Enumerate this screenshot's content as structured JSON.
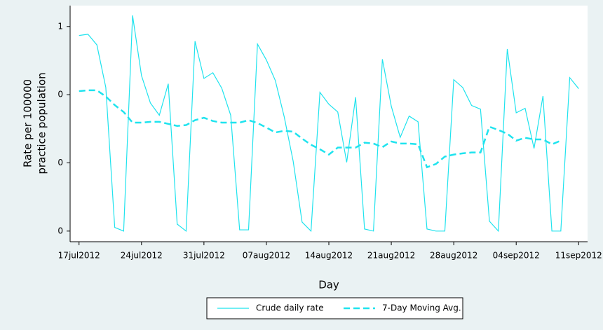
{
  "chart_data": {
    "type": "line",
    "ylabel": [
      "Rate per 100000",
      "practice population"
    ],
    "xlabel": "Day",
    "x": [
      "2012-07-17",
      "2012-07-18",
      "2012-07-19",
      "2012-07-20",
      "2012-07-21",
      "2012-07-22",
      "2012-07-23",
      "2012-07-24",
      "2012-07-25",
      "2012-07-26",
      "2012-07-27",
      "2012-07-28",
      "2012-07-29",
      "2012-07-30",
      "2012-07-31",
      "2012-08-01",
      "2012-08-02",
      "2012-08-03",
      "2012-08-04",
      "2012-08-05",
      "2012-08-06",
      "2012-08-07",
      "2012-08-08",
      "2012-08-09",
      "2012-08-10",
      "2012-08-11",
      "2012-08-12",
      "2012-08-13",
      "2012-08-14",
      "2012-08-15",
      "2012-08-16",
      "2012-08-17",
      "2012-08-18",
      "2012-08-19",
      "2012-08-20",
      "2012-08-21",
      "2012-08-22",
      "2012-08-23",
      "2012-08-24",
      "2012-08-25",
      "2012-08-26",
      "2012-08-27",
      "2012-08-28",
      "2012-08-29",
      "2012-08-30",
      "2012-08-31",
      "2012-09-01",
      "2012-09-02",
      "2012-09-03",
      "2012-09-04",
      "2012-09-05",
      "2012-09-06",
      "2012-09-07",
      "2012-09-08",
      "2012-09-09",
      "2012-09-10",
      "2012-09-11"
    ],
    "series": [
      {
        "name": "Crude daily rate",
        "color": "#1fe3ee",
        "dash": false,
        "values": [
          0.478,
          0.481,
          0.455,
          0.351,
          0.009,
          0,
          0.527,
          0.38,
          0.313,
          0.283,
          0.36,
          0.017,
          0,
          0.464,
          0.373,
          0.387,
          0.349,
          0.283,
          0.003,
          0.003,
          0.457,
          0.418,
          0.368,
          0.279,
          0.171,
          0.022,
          0,
          0.339,
          0.31,
          0.291,
          0.168,
          0.327,
          0.005,
          0,
          0.42,
          0.305,
          0.229,
          0.281,
          0.267,
          0.005,
          0,
          0,
          0.37,
          0.351,
          0.307,
          0.298,
          0.024,
          0,
          0.445,
          0.289,
          0.3,
          0.202,
          0.33,
          0,
          0,
          0.375,
          0.348
        ]
      },
      {
        "name": "7-Day Moving Avg.",
        "color": "#1fe3ee",
        "dash": true,
        "values": [
          0.342,
          0.344,
          0.344,
          0.329,
          0.308,
          0.291,
          0.265,
          0.265,
          0.267,
          0.267,
          0.262,
          0.257,
          0.259,
          0.271,
          0.277,
          0.269,
          0.265,
          0.265,
          0.265,
          0.271,
          0.264,
          0.253,
          0.241,
          0.245,
          0.243,
          0.226,
          0.211,
          0.2,
          0.187,
          0.204,
          0.204,
          0.204,
          0.216,
          0.214,
          0.205,
          0.219,
          0.214,
          0.214,
          0.212,
          0.156,
          0.164,
          0.182,
          0.187,
          0.19,
          0.192,
          0.192,
          0.255,
          0.247,
          0.238,
          0.221,
          0.228,
          0.224,
          0.224,
          0.212,
          0.221,
          null,
          null
        ]
      }
    ],
    "xlim": [
      "2012-07-16",
      "2012-09-12"
    ],
    "xticks": [
      {
        "value": "2012-07-17",
        "label": "17jul2012"
      },
      {
        "value": "2012-07-24",
        "label": "24jul2012"
      },
      {
        "value": "2012-07-31",
        "label": "31jul2012"
      },
      {
        "value": "2012-08-07",
        "label": "07aug2012"
      },
      {
        "value": "2012-08-14",
        "label": "14aug2012"
      },
      {
        "value": "2012-08-21",
        "label": "21aug2012"
      },
      {
        "value": "2012-08-28",
        "label": "28aug2012"
      },
      {
        "value": "2012-09-04",
        "label": "04sep2012"
      },
      {
        "value": "2012-09-11",
        "label": "11sep2012"
      }
    ],
    "ylim": [
      -0.026,
      0.551
    ],
    "yticks": [
      0,
      {
        "value": 0.1667,
        "label": "0"
      },
      {
        "value": 0.3333,
        "label": "0"
      },
      {
        "value": 0.5,
        "label": "1"
      }
    ],
    "legend": "bottom"
  }
}
